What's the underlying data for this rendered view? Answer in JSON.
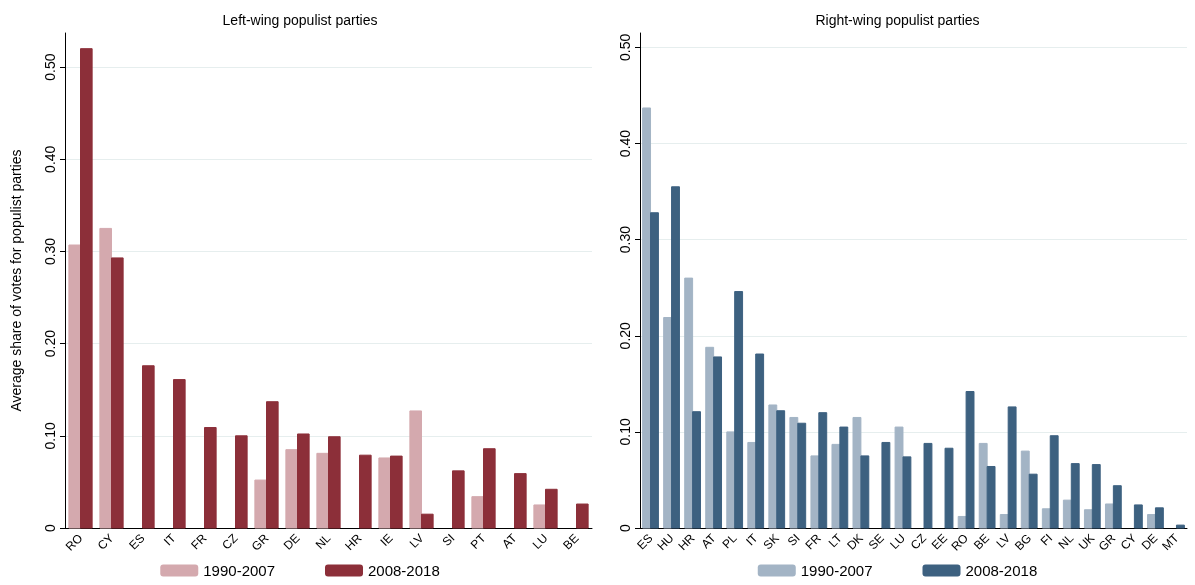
{
  "chart_data": [
    {
      "type": "bar",
      "title": "Left-wing populist parties",
      "ylabel": "Average share of votes for populist parties",
      "categories": [
        "RO",
        "CY",
        "ES",
        "IT",
        "FR",
        "CZ",
        "GR",
        "DE",
        "NL",
        "HR",
        "IE",
        "LV",
        "SI",
        "PT",
        "AT",
        "LU",
        "BE"
      ],
      "series": [
        {
          "name": "1990-2007",
          "color": "#d4a9ae",
          "values": [
            0.307,
            0.325,
            null,
            null,
            null,
            null,
            0.052,
            0.085,
            0.081,
            null,
            0.076,
            0.127,
            null,
            0.034,
            null,
            0.025,
            null
          ]
        },
        {
          "name": "2008-2018",
          "color": "#8c2f39",
          "values": [
            0.52,
            0.293,
            0.176,
            0.161,
            0.109,
            0.1,
            0.137,
            0.102,
            0.099,
            0.079,
            0.078,
            0.015,
            0.062,
            0.086,
            0.059,
            0.042,
            0.026
          ]
        }
      ],
      "ylim": [
        0,
        0.537
      ],
      "yticks": [
        0,
        {
          "value": 0.1,
          "label": "0.10"
        },
        {
          "value": 0.2,
          "label": "0.20"
        },
        {
          "value": 0.3,
          "label": "0.30"
        },
        {
          "value": 0.4,
          "label": "0.40"
        },
        {
          "value": 0.5,
          "label": "0.50"
        }
      ],
      "grid": "y",
      "legend": "bottom"
    },
    {
      "type": "bar",
      "title": "Right-wing populist parties",
      "categories": [
        "ES",
        "HU",
        "HR",
        "AT",
        "PL",
        "IT",
        "SK",
        "SI",
        "FR",
        "LT",
        "DK",
        "SE",
        "LU",
        "CZ",
        "EE",
        "RO",
        "BE",
        "LV",
        "BG",
        "FI",
        "NL",
        "UK",
        "GR",
        "CY",
        "DE",
        "MT"
      ],
      "series": [
        {
          "name": "1990-2007",
          "color": "#a3b4c5",
          "values": [
            0.437,
            0.219,
            0.26,
            0.188,
            0.1,
            0.089,
            0.128,
            0.115,
            0.075,
            0.087,
            0.115,
            null,
            0.105,
            null,
            null,
            0.012,
            0.088,
            0.014,
            0.08,
            0.02,
            0.029,
            0.019,
            0.025,
            null,
            0.014,
            null
          ]
        },
        {
          "name": "2008-2018",
          "color": "#3d6180",
          "values": [
            0.328,
            0.355,
            0.121,
            0.178,
            0.246,
            0.181,
            0.122,
            0.109,
            0.12,
            0.105,
            0.075,
            0.089,
            0.074,
            0.088,
            0.083,
            0.142,
            0.064,
            0.126,
            0.056,
            0.096,
            0.067,
            0.066,
            0.044,
            0.024,
            0.021,
            0.003
          ]
        }
      ],
      "ylim": [
        0,
        0.515
      ],
      "yticks": [
        0,
        {
          "value": 0.1,
          "label": "0.10"
        },
        {
          "value": 0.2,
          "label": "0.20"
        },
        {
          "value": 0.3,
          "label": "0.30"
        },
        {
          "value": 0.4,
          "label": "0.40"
        },
        {
          "value": 0.5,
          "label": "0.50"
        }
      ],
      "grid": "y",
      "legend": "bottom"
    }
  ]
}
